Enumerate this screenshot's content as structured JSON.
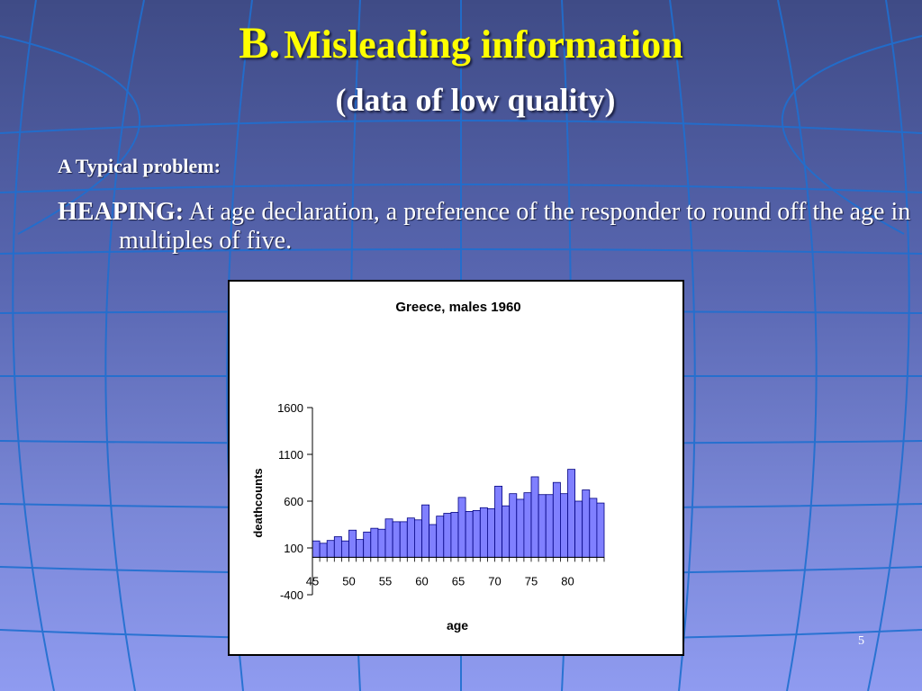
{
  "slide": {
    "title_prefix": "B.",
    "title_main": "Misleading information",
    "subtitle": "(data of low quality)",
    "problem_label": "A Typical problem:",
    "term": "HEAPING",
    "term_sep": ":",
    "definition": " At age declaration, a preference of the responder to round off the age in multiples of five.",
    "slide_number": "5",
    "colors": {
      "title": "#ffff00",
      "text": "#ffffff",
      "bar_fill": "#8080ff"
    }
  },
  "chart_data": {
    "type": "bar",
    "title": "Greece, males 1960",
    "xlabel": "age",
    "ylabel": "deathcounts",
    "ylim": [
      -400,
      1600
    ],
    "yticks": [
      "1600",
      "1100",
      "600",
      "100",
      "-400"
    ],
    "xticks": [
      "45",
      "50",
      "55",
      "60",
      "65",
      "70",
      "75",
      "80"
    ],
    "legend": "none",
    "grid": false,
    "x": [
      45,
      46,
      47,
      48,
      49,
      50,
      51,
      52,
      53,
      54,
      55,
      56,
      57,
      58,
      59,
      60,
      61,
      62,
      63,
      64,
      65,
      66,
      67,
      68,
      69,
      70,
      71,
      72,
      73,
      74,
      75,
      76,
      77,
      78,
      79,
      80,
      81,
      82,
      83,
      84
    ],
    "values": [
      175,
      150,
      180,
      220,
      175,
      290,
      190,
      270,
      310,
      300,
      410,
      380,
      380,
      420,
      400,
      560,
      350,
      440,
      470,
      480,
      640,
      490,
      500,
      530,
      520,
      760,
      550,
      680,
      620,
      690,
      860,
      670,
      670,
      800,
      680,
      940,
      600,
      720,
      630,
      580
    ]
  }
}
